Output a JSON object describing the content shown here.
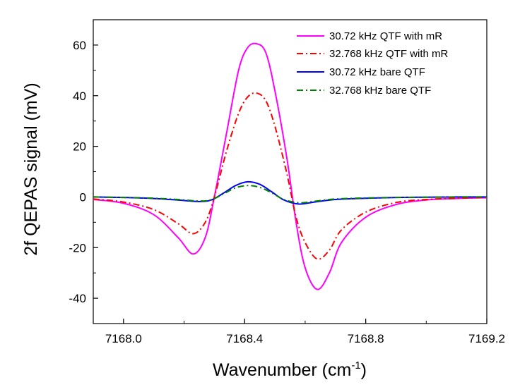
{
  "chart_data": {
    "type": "line",
    "title": "",
    "xlabel": "Wavenumber (cm",
    "xlabel_sup": "-1",
    "xlabel_end": ")",
    "ylabel": "2f QEPAS signal (mV)",
    "xlim": [
      7167.9,
      7169.2
    ],
    "ylim": [
      -50,
      70
    ],
    "x_ticks": [
      7168.0,
      7168.4,
      7168.8,
      7169.2
    ],
    "x_tick_labels": [
      "7168.0",
      "7168.4",
      "7168.8",
      "7169.2"
    ],
    "y_ticks": [
      -40,
      -20,
      0,
      20,
      40,
      60
    ],
    "y_tick_labels": [
      "-40",
      "-20",
      "0",
      "20",
      "40",
      "60"
    ],
    "legend_position": "top-right",
    "grid": false,
    "series": [
      {
        "name": "30.72 kHz QTF with mR",
        "color": "#ff00ff",
        "dash": "solid",
        "x": [
          7167.9,
          7168.0,
          7168.1,
          7168.18,
          7168.23,
          7168.27,
          7168.3,
          7168.34,
          7168.38,
          7168.41,
          7168.44,
          7168.47,
          7168.5,
          7168.54,
          7168.57,
          7168.6,
          7168.64,
          7168.68,
          7168.72,
          7168.8,
          7168.9,
          7169.0,
          7169.1,
          7169.2
        ],
        "y": [
          -1,
          -2.5,
          -7,
          -16,
          -22.5,
          -16,
          0,
          25,
          50,
          59,
          60.5,
          57,
          42,
          15,
          -10,
          -28,
          -36.5,
          -30,
          -18,
          -8,
          -3,
          -1.2,
          -0.6,
          -0.3
        ]
      },
      {
        "name": "32.768 kHz QTF with mR",
        "color": "#ff0000",
        "dash": "dashdot",
        "x": [
          7167.9,
          7168.0,
          7168.1,
          7168.18,
          7168.23,
          7168.27,
          7168.3,
          7168.34,
          7168.38,
          7168.41,
          7168.44,
          7168.47,
          7168.5,
          7168.54,
          7168.57,
          7168.6,
          7168.64,
          7168.68,
          7168.72,
          7168.8,
          7168.9,
          7169.0,
          7169.1,
          7169.2
        ],
        "y": [
          -0.8,
          -2,
          -5,
          -10.5,
          -14.5,
          -10,
          0,
          18,
          33,
          39.5,
          41,
          38,
          28,
          9,
          -8,
          -18,
          -24.5,
          -21,
          -13,
          -6,
          -2.2,
          -1,
          -0.5,
          -0.2
        ]
      },
      {
        "name": "30.72 kHz bare QTF",
        "color": "#0000ff",
        "dash": "solid",
        "x": [
          7167.9,
          7168.0,
          7168.1,
          7168.18,
          7168.25,
          7168.29,
          7168.33,
          7168.37,
          7168.41,
          7168.45,
          7168.49,
          7168.53,
          7168.58,
          7168.63,
          7168.7,
          7168.8,
          7168.9,
          7169.0,
          7169.1,
          7169.2
        ],
        "y": [
          0,
          -0.2,
          -0.6,
          -1.2,
          -1.8,
          -1.2,
          1.5,
          4.5,
          6,
          5,
          2,
          -1.2,
          -2.8,
          -2,
          -1,
          -0.5,
          -0.2,
          -0.1,
          0,
          0
        ]
      },
      {
        "name": "32.768 kHz bare QTF",
        "color": "#008000",
        "dash": "dashdot",
        "x": [
          7167.9,
          7168.0,
          7168.1,
          7168.18,
          7168.25,
          7168.29,
          7168.33,
          7168.37,
          7168.41,
          7168.45,
          7168.49,
          7168.53,
          7168.58,
          7168.63,
          7168.7,
          7168.8,
          7168.9,
          7169.0,
          7169.1,
          7169.2
        ],
        "y": [
          0,
          -0.2,
          -0.5,
          -1,
          -1.6,
          -1.1,
          1.2,
          3.6,
          4.5,
          3.8,
          1.6,
          -1,
          -2.3,
          -1.7,
          -0.8,
          -0.4,
          -0.2,
          -0.1,
          0,
          0
        ]
      }
    ]
  }
}
